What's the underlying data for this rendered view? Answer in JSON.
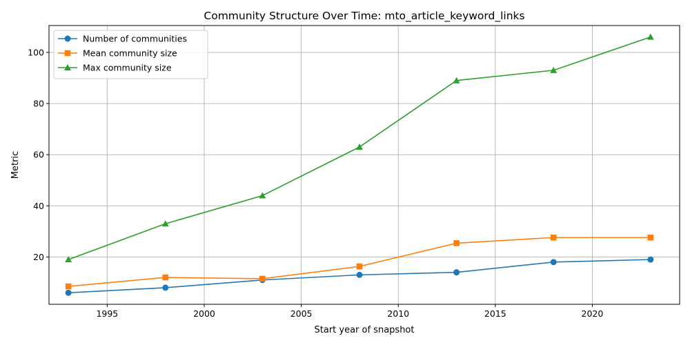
{
  "chart_data": {
    "type": "line",
    "title": "Community Structure Over Time: mto_article_keyword_links",
    "xlabel": "Start year of snapshot",
    "ylabel": "Metric",
    "xlim": [
      1992,
      2024.5
    ],
    "ylim": [
      1.5,
      110.5
    ],
    "xticks": [
      1995,
      2000,
      2005,
      2010,
      2015,
      2020
    ],
    "yticks": [
      20,
      40,
      60,
      80,
      100
    ],
    "grid": true,
    "legend_position": "top-left",
    "x": [
      1993,
      1998,
      2003,
      2008,
      2013,
      2018,
      2023
    ],
    "series": [
      {
        "name": "Number of communities",
        "color": "#1f77b4",
        "marker": "circle",
        "values": [
          6,
          8,
          11,
          13,
          14,
          18,
          19
        ]
      },
      {
        "name": "Mean community size",
        "color": "#ff7f0e",
        "marker": "square",
        "values": [
          8.5,
          12,
          11.5,
          16.3,
          25.4,
          27.6,
          27.6
        ]
      },
      {
        "name": "Max community size",
        "color": "#2ca02c",
        "marker": "triangle",
        "values": [
          19,
          33,
          44,
          63,
          89,
          93,
          106
        ]
      }
    ]
  }
}
